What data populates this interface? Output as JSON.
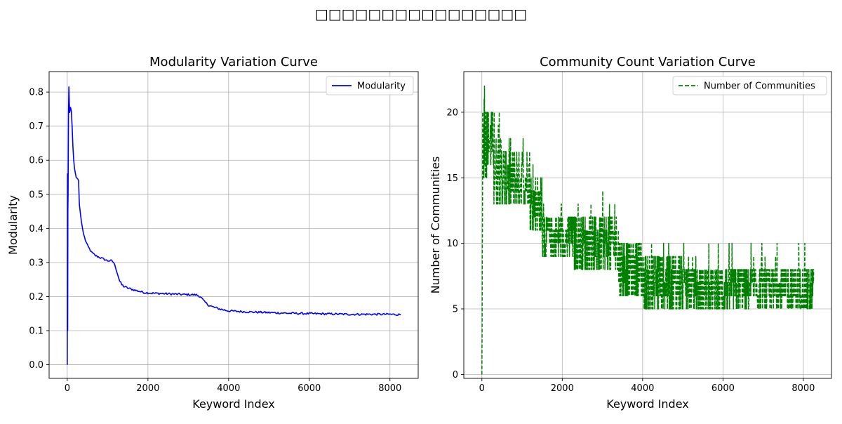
{
  "figure": {
    "suptitle": "□□□□□□□□□□□□□□□□"
  },
  "chart_data": [
    {
      "type": "line",
      "title": "Modularity Variation Curve",
      "xlabel": "Keyword Index",
      "ylabel": "Modularity",
      "xlim": [
        -450,
        8700
      ],
      "ylim": [
        -0.04,
        0.86
      ],
      "xticks": [
        0,
        2000,
        4000,
        6000,
        8000
      ],
      "yticks": [
        0.0,
        0.1,
        0.2,
        0.3,
        0.4,
        0.5,
        0.6,
        0.7,
        0.8
      ],
      "ytick_labels": [
        "0.0",
        "0.1",
        "0.2",
        "0.3",
        "0.4",
        "0.5",
        "0.6",
        "0.7",
        "0.8"
      ],
      "grid": true,
      "legend": "upper right",
      "series": [
        {
          "name": "Modularity",
          "color": "#0000ff",
          "style": "solid",
          "points": [
            [
              0,
              0.0
            ],
            [
              5,
              0.56
            ],
            [
              10,
              0.1
            ],
            [
              15,
              0.45
            ],
            [
              20,
              0.5
            ],
            [
              30,
              0.73
            ],
            [
              40,
              0.815
            ],
            [
              50,
              0.77
            ],
            [
              60,
              0.74
            ],
            [
              80,
              0.755
            ],
            [
              100,
              0.745
            ],
            [
              120,
              0.7
            ],
            [
              140,
              0.64
            ],
            [
              160,
              0.6
            ],
            [
              180,
              0.575
            ],
            [
              220,
              0.55
            ],
            [
              260,
              0.545
            ],
            [
              280,
              0.54
            ],
            [
              300,
              0.47
            ],
            [
              350,
              0.42
            ],
            [
              400,
              0.385
            ],
            [
              450,
              0.365
            ],
            [
              500,
              0.35
            ],
            [
              550,
              0.34
            ],
            [
              600,
              0.33
            ],
            [
              700,
              0.32
            ],
            [
              800,
              0.315
            ],
            [
              900,
              0.31
            ],
            [
              1000,
              0.305
            ],
            [
              1100,
              0.305
            ],
            [
              1150,
              0.3
            ],
            [
              1200,
              0.285
            ],
            [
              1250,
              0.265
            ],
            [
              1300,
              0.245
            ],
            [
              1350,
              0.235
            ],
            [
              1400,
              0.23
            ],
            [
              1500,
              0.225
            ],
            [
              1700,
              0.218
            ],
            [
              1900,
              0.212
            ],
            [
              2100,
              0.21
            ],
            [
              2500,
              0.208
            ],
            [
              2900,
              0.206
            ],
            [
              3200,
              0.205
            ],
            [
              3300,
              0.2
            ],
            [
              3400,
              0.185
            ],
            [
              3500,
              0.175
            ],
            [
              3600,
              0.17
            ],
            [
              3800,
              0.163
            ],
            [
              4000,
              0.158
            ],
            [
              4500,
              0.155
            ],
            [
              5000,
              0.153
            ],
            [
              5500,
              0.151
            ],
            [
              6000,
              0.15
            ],
            [
              6500,
              0.149
            ],
            [
              7000,
              0.148
            ],
            [
              7500,
              0.148
            ],
            [
              8000,
              0.148
            ],
            [
              8270,
              0.147
            ]
          ]
        }
      ]
    },
    {
      "type": "line",
      "title": "Community Count Variation Curve",
      "xlabel": "Keyword Index",
      "ylabel": "Number of Communities",
      "xlim": [
        -450,
        8700
      ],
      "ylim": [
        -0.3,
        23.1
      ],
      "xticks": [
        0,
        2000,
        4000,
        6000,
        8000
      ],
      "yticks": [
        0,
        5,
        10,
        15,
        20
      ],
      "ytick_labels": [
        "0",
        "5",
        "10",
        "15",
        "20"
      ],
      "grid": true,
      "legend": "upper right",
      "series": [
        {
          "name": "Number of Communities",
          "color": "#008000",
          "style": "dashed",
          "bands": [
            {
              "x": [
                0,
                20
              ],
              "y": [
                1,
                15
              ],
              "max": 16
            },
            {
              "x": [
                20,
                120
              ],
              "y": [
                15,
                21
              ],
              "max": 22
            },
            {
              "x": [
                120,
                300
              ],
              "y": [
                16,
                20
              ],
              "max": 22
            },
            {
              "x": [
                300,
                500
              ],
              "y": [
                13,
                18
              ],
              "max": 20
            },
            {
              "x": [
                500,
                900
              ],
              "y": [
                13,
                17
              ],
              "max": 18
            },
            {
              "x": [
                900,
                1200
              ],
              "y": [
                13,
                17
              ],
              "max": 19
            },
            {
              "x": [
                1200,
                1500
              ],
              "y": [
                11,
                15
              ],
              "max": 16
            },
            {
              "x": [
                1500,
                2300
              ],
              "y": [
                9,
                12
              ],
              "max": 13
            },
            {
              "x": [
                2300,
                3400
              ],
              "y": [
                8,
                12
              ],
              "max": 14
            },
            {
              "x": [
                3400,
                4000
              ],
              "y": [
                6,
                10
              ],
              "max": 10
            },
            {
              "x": [
                4000,
                5000
              ],
              "y": [
                5,
                9
              ],
              "max": 10
            },
            {
              "x": [
                5000,
                8270
              ],
              "y": [
                5,
                8
              ],
              "max": 10
            }
          ]
        }
      ]
    }
  ]
}
